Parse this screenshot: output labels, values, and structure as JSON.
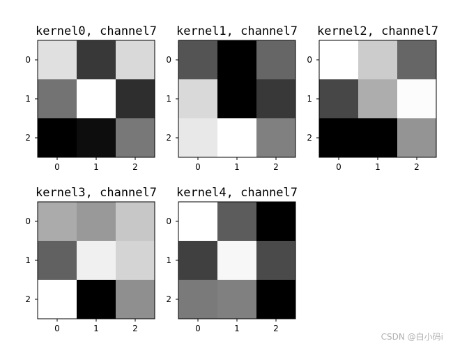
{
  "chart_data": [
    {
      "type": "heatmap",
      "title": "kernel0, channel7",
      "x_ticks": [
        "0",
        "1",
        "2"
      ],
      "y_ticks": [
        "0",
        "1",
        "2"
      ],
      "colormap": "gray",
      "values": [
        [
          0.88,
          0.22,
          0.85
        ],
        [
          0.45,
          1.0,
          0.18
        ],
        [
          0.0,
          0.05,
          0.47
        ]
      ]
    },
    {
      "type": "heatmap",
      "title": "kernel1, channel7",
      "x_ticks": [
        "0",
        "1",
        "2"
      ],
      "y_ticks": [
        "0",
        "1",
        "2"
      ],
      "colormap": "gray",
      "values": [
        [
          0.33,
          0.0,
          0.4
        ],
        [
          0.85,
          0.0,
          0.22
        ],
        [
          0.91,
          1.0,
          0.5
        ]
      ]
    },
    {
      "type": "heatmap",
      "title": "kernel2, channel7",
      "x_ticks": [
        "0",
        "1",
        "2"
      ],
      "y_ticks": [
        "0",
        "1",
        "2"
      ],
      "colormap": "gray",
      "values": [
        [
          1.0,
          0.8,
          0.4
        ],
        [
          0.28,
          0.68,
          0.99
        ],
        [
          0.0,
          0.0,
          0.58
        ]
      ]
    },
    {
      "type": "heatmap",
      "title": "kernel3, channel7",
      "x_ticks": [
        "0",
        "1",
        "2"
      ],
      "y_ticks": [
        "0",
        "1",
        "2"
      ],
      "colormap": "gray",
      "values": [
        [
          0.67,
          0.6,
          0.78
        ],
        [
          0.38,
          0.94,
          0.83
        ],
        [
          1.0,
          0.0,
          0.56
        ]
      ]
    },
    {
      "type": "heatmap",
      "title": "kernel4, channel7",
      "x_ticks": [
        "0",
        "1",
        "2"
      ],
      "y_ticks": [
        "0",
        "1",
        "2"
      ],
      "colormap": "gray",
      "values": [
        [
          1.0,
          0.36,
          0.0
        ],
        [
          0.25,
          0.97,
          0.29
        ],
        [
          0.48,
          0.5,
          0.0
        ]
      ]
    }
  ],
  "watermark": "CSDN @白小码i"
}
